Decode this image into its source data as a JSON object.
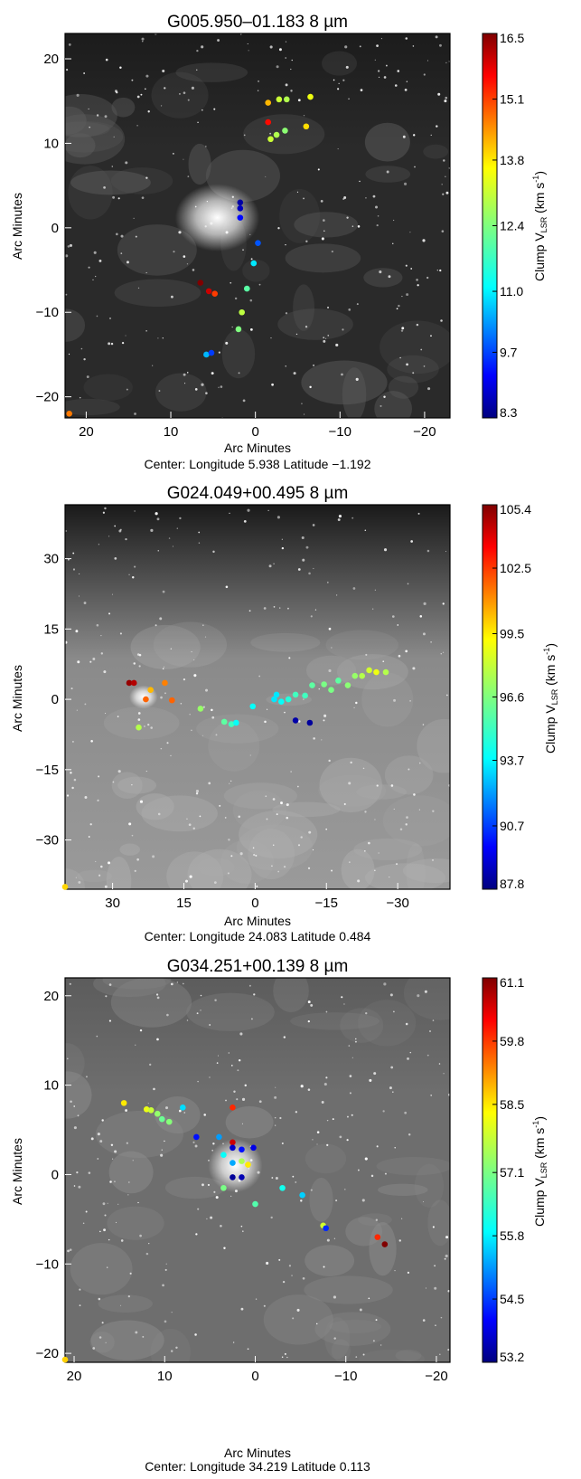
{
  "chart_data": [
    {
      "type": "scatter",
      "title": "G005.950–01.183  8 µm",
      "xlabel": "Arc Minutes",
      "ylabel": "Arc Minutes",
      "center_label": "Center:  Longitude 5.938 Latitude −1.192",
      "colorbar_label": "Clump V",
      "colorbar_sub": "LSR",
      "colorbar_units": " (km s",
      "colorbar_units_exp": "-1",
      "colorbar_units_end": ")",
      "xlim": [
        22.5,
        -23.0
      ],
      "ylim": [
        -22.5,
        23.0
      ],
      "x_ticks": [
        20,
        10,
        0,
        -10,
        -20
      ],
      "x_tick_labels": [
        "20",
        "10",
        "0",
        "−10",
        "−20"
      ],
      "y_ticks": [
        20,
        10,
        0,
        -10,
        -20
      ],
      "y_tick_labels": [
        "20",
        "10",
        "0",
        "−10",
        "−20"
      ],
      "colorbar_range": [
        8.3,
        16.5
      ],
      "colorbar_ticks": [
        16.5,
        15.1,
        13.8,
        12.4,
        11.0,
        9.7,
        8.3
      ],
      "colorbar_tick_labels": [
        "16.5",
        "15.1",
        "13.8",
        "12.4",
        "11.0",
        "9.7",
        "8.3"
      ],
      "background": "dark",
      "nebula": {
        "x": 4.5,
        "y": 1.2,
        "rx": 5,
        "ry": 4
      },
      "points": [
        {
          "x": -1.5,
          "y": 14.8,
          "v": 14.0
        },
        {
          "x": -2.8,
          "y": 15.2,
          "v": 13.0
        },
        {
          "x": -3.7,
          "y": 15.2,
          "v": 12.8
        },
        {
          "x": -6.5,
          "y": 15.5,
          "v": 13.3
        },
        {
          "x": -1.5,
          "y": 12.5,
          "v": 15.4
        },
        {
          "x": -3.5,
          "y": 11.5,
          "v": 12.5
        },
        {
          "x": -2.5,
          "y": 11.0,
          "v": 12.8
        },
        {
          "x": -1.8,
          "y": 10.5,
          "v": 13.0
        },
        {
          "x": -6.0,
          "y": 12.0,
          "v": 13.7
        },
        {
          "x": 1.8,
          "y": 3.0,
          "v": 8.6
        },
        {
          "x": 1.8,
          "y": 2.3,
          "v": 8.8
        },
        {
          "x": 1.8,
          "y": 1.2,
          "v": 9.4
        },
        {
          "x": -0.3,
          "y": -1.8,
          "v": 10.0
        },
        {
          "x": 0.2,
          "y": -4.2,
          "v": 11.2
        },
        {
          "x": 1.0,
          "y": -7.2,
          "v": 12.1
        },
        {
          "x": 1.6,
          "y": -10.0,
          "v": 12.9
        },
        {
          "x": 2.0,
          "y": -12.0,
          "v": 12.4
        },
        {
          "x": 6.5,
          "y": -6.5,
          "v": 16.5
        },
        {
          "x": 5.5,
          "y": -7.5,
          "v": 15.9
        },
        {
          "x": 4.8,
          "y": -7.8,
          "v": 15.0
        },
        {
          "x": 5.8,
          "y": -15.0,
          "v": 10.8
        },
        {
          "x": 5.2,
          "y": -14.8,
          "v": 9.8
        },
        {
          "x": 22.0,
          "y": -22.0,
          "v": 14.5
        }
      ]
    },
    {
      "type": "scatter",
      "title": "G024.049+00.495  8 µm",
      "xlabel": "Arc Minutes",
      "ylabel": "Arc Minutes",
      "center_label": "Center:  Longitude 24.083 Latitude 0.484",
      "colorbar_label": "Clump V",
      "colorbar_sub": "LSR",
      "colorbar_units": " (km s",
      "colorbar_units_exp": "-1",
      "colorbar_units_end": ")",
      "xlim": [
        40.0,
        -41.0
      ],
      "ylim": [
        -40.5,
        41.5
      ],
      "x_ticks": [
        30,
        15,
        0,
        -15,
        -30
      ],
      "x_tick_labels": [
        "30",
        "15",
        "0",
        "−15",
        "−30"
      ],
      "y_ticks": [
        30,
        15,
        0,
        -15,
        -30
      ],
      "y_tick_labels": [
        "30",
        "15",
        "0",
        "−15",
        "−30"
      ],
      "colorbar_range": [
        87.8,
        105.4
      ],
      "colorbar_ticks": [
        105.4,
        102.5,
        99.5,
        96.6,
        93.7,
        90.7,
        87.8
      ],
      "colorbar_tick_labels": [
        "105.4",
        "102.5",
        "99.5",
        "96.6",
        "93.7",
        "90.7",
        "87.8"
      ],
      "background": "bright",
      "nebula": {
        "x": 23.5,
        "y": 0.5,
        "rx": 3,
        "ry": 2.5
      },
      "points": [
        {
          "x": 26.5,
          "y": 3.5,
          "v": 105.0
        },
        {
          "x": 25.5,
          "y": 3.5,
          "v": 104.5
        },
        {
          "x": 23.0,
          "y": 0.0,
          "v": 101.5
        },
        {
          "x": 22.0,
          "y": 2.0,
          "v": 100.0
        },
        {
          "x": 19.0,
          "y": 3.5,
          "v": 101.0
        },
        {
          "x": 17.5,
          "y": -0.2,
          "v": 101.5
        },
        {
          "x": 24.5,
          "y": -6.0,
          "v": 97.5
        },
        {
          "x": 11.5,
          "y": -2.0,
          "v": 97.0
        },
        {
          "x": 6.5,
          "y": -4.8,
          "v": 96.0
        },
        {
          "x": 5.0,
          "y": -5.3,
          "v": 95.5
        },
        {
          "x": 4.0,
          "y": -5.0,
          "v": 94.5
        },
        {
          "x": 0.5,
          "y": -1.5,
          "v": 94.5
        },
        {
          "x": -4.0,
          "y": 0.0,
          "v": 94.0
        },
        {
          "x": -4.5,
          "y": 1.0,
          "v": 94.0
        },
        {
          "x": -5.5,
          "y": -0.5,
          "v": 94.5
        },
        {
          "x": -7.0,
          "y": 0.0,
          "v": 95.0
        },
        {
          "x": -8.5,
          "y": 1.0,
          "v": 95.5
        },
        {
          "x": -10.5,
          "y": 0.8,
          "v": 95.5
        },
        {
          "x": -12.0,
          "y": 3.0,
          "v": 96.0
        },
        {
          "x": -14.5,
          "y": 3.2,
          "v": 96.5
        },
        {
          "x": -16.0,
          "y": 2.0,
          "v": 96.5
        },
        {
          "x": -17.5,
          "y": 4.0,
          "v": 96.0
        },
        {
          "x": -19.5,
          "y": 3.0,
          "v": 96.8
        },
        {
          "x": -21.0,
          "y": 5.0,
          "v": 97.0
        },
        {
          "x": -22.5,
          "y": 5.0,
          "v": 97.5
        },
        {
          "x": -24.0,
          "y": 6.2,
          "v": 98.0
        },
        {
          "x": -25.5,
          "y": 5.8,
          "v": 98.5
        },
        {
          "x": -27.5,
          "y": 5.8,
          "v": 97.5
        },
        {
          "x": -8.5,
          "y": -4.5,
          "v": 88.5
        },
        {
          "x": -11.5,
          "y": -5.0,
          "v": 88.3
        },
        {
          "x": 40.0,
          "y": -40.0,
          "v": 99.5
        }
      ]
    },
    {
      "type": "scatter",
      "title": "G034.251+00.139  8 µm",
      "xlabel": "Arc Minutes",
      "ylabel": "Arc Minutes",
      "center_label": "Center:  Longitude 34.219 Latitude 0.113",
      "colorbar_label": "Clump V",
      "colorbar_sub": "LSR",
      "colorbar_units": " (km s",
      "colorbar_units_exp": "-1",
      "colorbar_units_end": ")",
      "xlim": [
        21.0,
        -21.5
      ],
      "ylim": [
        -21.0,
        22.0
      ],
      "x_ticks": [
        20,
        10,
        0,
        -10,
        -20
      ],
      "x_tick_labels": [
        "20",
        "10",
        "0",
        "−10",
        "−20"
      ],
      "y_ticks": [
        20,
        10,
        0,
        -10,
        -20
      ],
      "y_tick_labels": [
        "20",
        "10",
        "0",
        "−10",
        "−20"
      ],
      "colorbar_range": [
        53.2,
        61.1
      ],
      "colorbar_ticks": [
        61.1,
        59.8,
        58.5,
        57.1,
        55.8,
        54.5,
        53.2
      ],
      "colorbar_tick_labels": [
        "61.1",
        "59.8",
        "58.5",
        "57.1",
        "55.8",
        "54.5",
        "53.2"
      ],
      "background": "medium",
      "nebula": {
        "x": 2.2,
        "y": 1.0,
        "rx": 3,
        "ry": 3
      },
      "points": [
        {
          "x": 14.5,
          "y": 8.0,
          "v": 58.3
        },
        {
          "x": 12.0,
          "y": 7.3,
          "v": 58.0
        },
        {
          "x": 11.5,
          "y": 7.2,
          "v": 57.7
        },
        {
          "x": 10.8,
          "y": 6.8,
          "v": 57.3
        },
        {
          "x": 10.3,
          "y": 6.2,
          "v": 57.0
        },
        {
          "x": 9.5,
          "y": 5.9,
          "v": 57.2
        },
        {
          "x": 8.0,
          "y": 7.5,
          "v": 55.9
        },
        {
          "x": 2.5,
          "y": 7.5,
          "v": 59.8
        },
        {
          "x": 6.5,
          "y": 4.2,
          "v": 54.3
        },
        {
          "x": 4.0,
          "y": 4.2,
          "v": 55.4
        },
        {
          "x": 2.5,
          "y": 3.6,
          "v": 60.5
        },
        {
          "x": 2.5,
          "y": 3.0,
          "v": 53.8
        },
        {
          "x": 1.5,
          "y": 2.8,
          "v": 54.3
        },
        {
          "x": 0.2,
          "y": 3.0,
          "v": 54.0
        },
        {
          "x": 3.5,
          "y": 2.2,
          "v": 56.2
        },
        {
          "x": 2.5,
          "y": 1.3,
          "v": 55.5
        },
        {
          "x": 1.5,
          "y": 1.5,
          "v": 57.5
        },
        {
          "x": 0.8,
          "y": 1.1,
          "v": 58.3
        },
        {
          "x": 2.5,
          "y": -0.3,
          "v": 53.4
        },
        {
          "x": 1.5,
          "y": -0.3,
          "v": 53.6
        },
        {
          "x": 3.5,
          "y": -1.5,
          "v": 57.1
        },
        {
          "x": 0.0,
          "y": -3.3,
          "v": 56.8
        },
        {
          "x": -3.0,
          "y": -1.5,
          "v": 56.3
        },
        {
          "x": -5.2,
          "y": -2.3,
          "v": 55.8
        },
        {
          "x": -7.5,
          "y": -5.7,
          "v": 57.8
        },
        {
          "x": -7.8,
          "y": -6.0,
          "v": 54.5
        },
        {
          "x": -13.5,
          "y": -7.0,
          "v": 59.8
        },
        {
          "x": -14.3,
          "y": -7.8,
          "v": 61.1
        },
        {
          "x": 21.0,
          "y": -20.7,
          "v": 58.5
        }
      ]
    }
  ]
}
